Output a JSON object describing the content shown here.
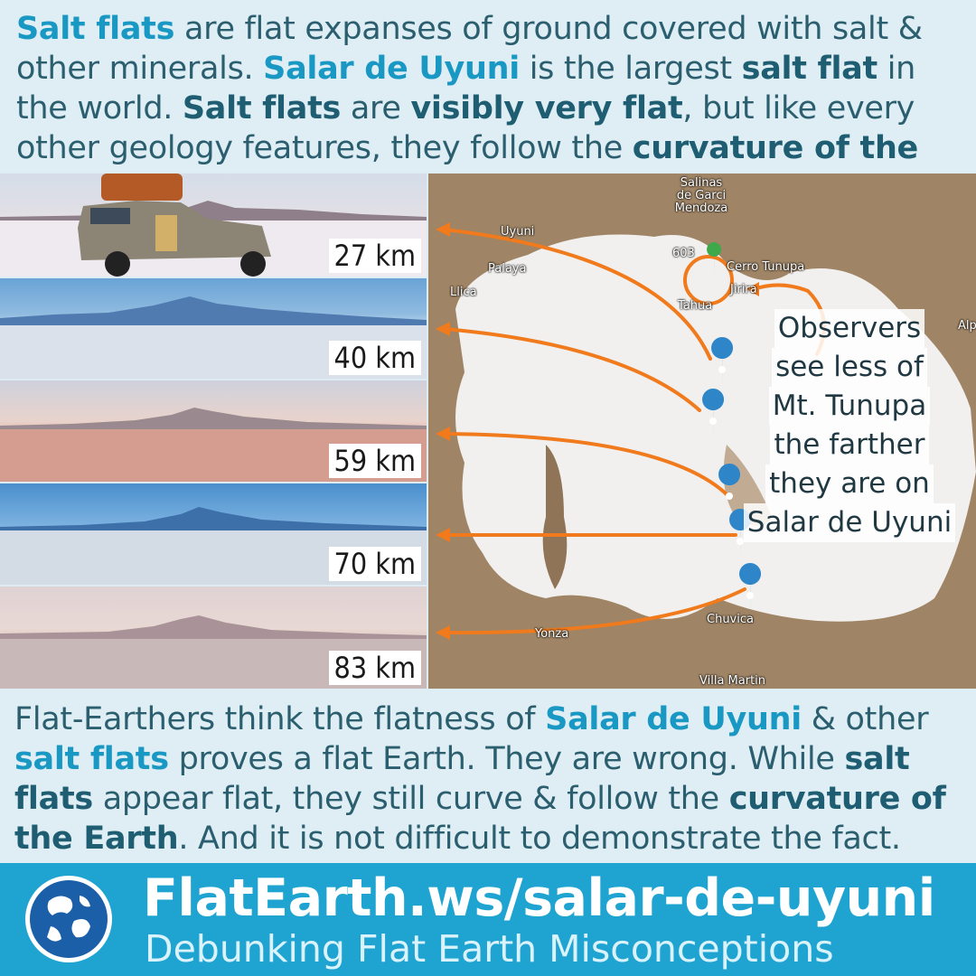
{
  "intro": {
    "s1": "Salt flats",
    "s2": " are flat expanses of ground covered with salt & other minerals. ",
    "s3": "Salar de Uyuni",
    "s4": " is the largest ",
    "s5": "salt flat",
    "s6": " in the world. ",
    "s7": "Salt flats",
    "s8": " are ",
    "s9": "visibly very flat",
    "s10": ", but like every other geology features, they follow the ",
    "s11": "curvature of the Earth",
    "s12": "."
  },
  "photos": [
    {
      "distance": "27 km"
    },
    {
      "distance": "40 km"
    },
    {
      "distance": "59 km"
    },
    {
      "distance": "70 km"
    },
    {
      "distance": "83 km"
    }
  ],
  "map": {
    "places": {
      "salinas": "Salinas de Garci Mendoza",
      "uyuni": "Uyuni",
      "palaya": "Palaya",
      "llica": "Llica",
      "tahua": "Tahua",
      "jirira": "Jirira",
      "cerro": "Cerro Tunupa",
      "road": "603",
      "alp": "Alp",
      "yonza": "Yonza",
      "chuvica": "Chuvica",
      "villa": "Villa Martin"
    },
    "annotation": [
      "Observers",
      "see less of",
      "Mt. Tunupa",
      "the farther",
      "they are on",
      "Salar de Uyuni"
    ],
    "colors": {
      "arrow": "#f07a1c",
      "pin": "#2e86c9",
      "peak_pin": "#3ea94b"
    }
  },
  "outro": {
    "s1": "Flat-Earthers think the flatness of ",
    "s2": "Salar de Uyuni",
    "s3": " & other ",
    "s4": "salt flats",
    "s5": " proves a flat Earth. They are wrong. While ",
    "s6": "salt flats",
    "s7": " appear flat, they still curve & follow the ",
    "s8": "curvature of the Earth",
    "s9": ". And it is not difficult to demonstrate the fact."
  },
  "footer": {
    "site": "FlatEarth.ws/salar-de-uyuni",
    "tagline": "Debunking Flat Earth Misconceptions",
    "logo_icon": "globe-icon"
  },
  "colors": {
    "accent": "#1a98c4",
    "dark_accent": "#1f5e72",
    "text": "#2b5e6e",
    "footer_bg": "#1fa4d1"
  }
}
